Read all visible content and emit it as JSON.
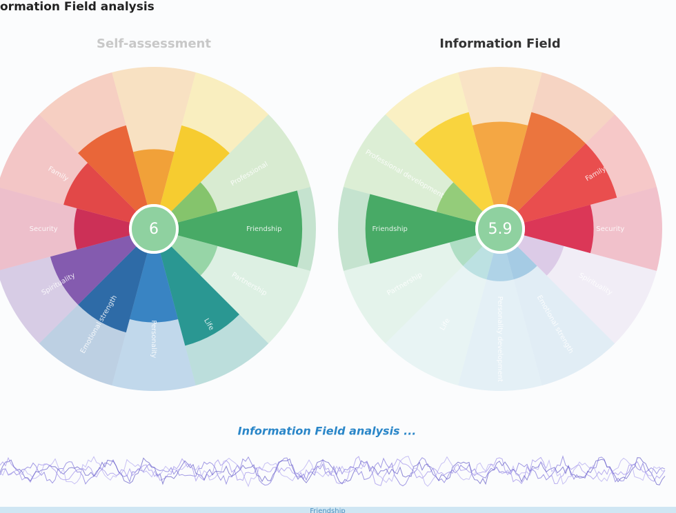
{
  "header": {
    "title": "ormation Field analysis"
  },
  "wheels": [
    {
      "title": "Self-assessment",
      "score": 6,
      "segments": [
        {
          "label": "Friendship",
          "color": "#3aa35a",
          "value": 9
        },
        {
          "label": "Partnership",
          "color": "#8fd1a0",
          "value": 3
        },
        {
          "label": "Life",
          "color": "#1a8f8a",
          "value": 7
        },
        {
          "label": "Personality",
          "color": "#2a7bbf",
          "value": 5
        },
        {
          "label": "Emotional strength",
          "color": "#1e5fa0",
          "value": 6
        },
        {
          "label": "Spirituality",
          "color": "#7b4fa8",
          "value": 6
        },
        {
          "label": "Security",
          "color": "#c8204a",
          "value": 4
        },
        {
          "label": "Family",
          "color": "#e03a3a",
          "value": 5
        },
        {
          "label": null,
          "color": "#e85a2a",
          "value": 6
        },
        {
          "label": null,
          "color": "#f09a2a",
          "value": 4
        },
        {
          "label": null,
          "color": "#f5c820",
          "value": 6
        },
        {
          "label": "Professional",
          "color": "#7cc060",
          "value": 3
        }
      ]
    },
    {
      "title": "Information Field",
      "score": 5.9,
      "segments": [
        {
          "label": "Friendship",
          "color": "#3aa35a",
          "value": 8
        },
        {
          "label": "Partnership",
          "color": "#a8dcc0",
          "value": 2
        },
        {
          "label": "Life",
          "color": "#b7dfe0",
          "value": 2
        },
        {
          "label": "Personality development",
          "color": "#a9cfe6",
          "value": 2
        },
        {
          "label": "Emotional strength",
          "color": "#9fc7e2",
          "value": 2
        },
        {
          "label": "Spirituality",
          "color": "#d9c6e6",
          "value": 3
        },
        {
          "label": "Security",
          "color": "#d8284a",
          "value": 5
        },
        {
          "label": "Family",
          "color": "#e84040",
          "value": 7
        },
        {
          "label": null,
          "color": "#ea6a30",
          "value": 7
        },
        {
          "label": null,
          "color": "#f3a035",
          "value": 6
        },
        {
          "label": null,
          "color": "#f8d030",
          "value": 7
        },
        {
          "label": "Professional development",
          "color": "#8cc870",
          "value": 3
        }
      ]
    }
  ],
  "footer": {
    "status": "Information Field analysis ...",
    "tab": "Friendship"
  }
}
